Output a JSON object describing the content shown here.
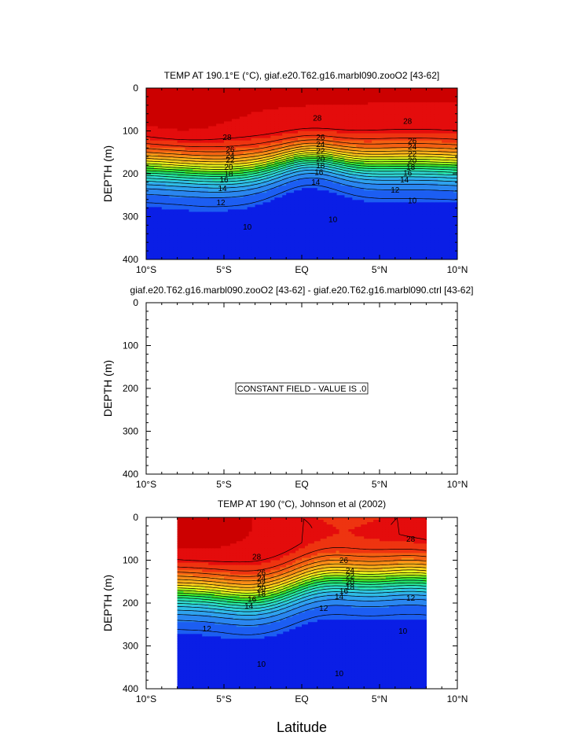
{
  "chart_data": [
    {
      "type": "contour",
      "title": "TEMP AT 190.1°E (°C), giaf.e20.T62.g16.marbl090.zooO2 [43-62]",
      "xlabel": "",
      "ylabel": "DEPTH (m)",
      "xticks": [
        "10°S",
        "5°S",
        "EQ",
        "5°N",
        "10°N"
      ],
      "yticks": [
        "0",
        "100",
        "200",
        "300",
        "400"
      ],
      "xlim": [
        -10,
        10
      ],
      "ylim": [
        0,
        400
      ],
      "colors": [
        "#0a1ee6",
        "#1c5ef2",
        "#2a86f0",
        "#2fa2ee",
        "#2fbde6",
        "#2fd6d0",
        "#29e6a8",
        "#22e46a",
        "#3ee628",
        "#9df01c",
        "#e8f41c",
        "#fbd41a",
        "#fbb01a",
        "#f98a16",
        "#f46012",
        "#ee3410",
        "#e40c0c",
        "#cc0000"
      ],
      "contour_labels": [
        {
          "text": "28",
          "x": -4.8,
          "y": 115
        },
        {
          "text": "28",
          "x": 1.0,
          "y": 70
        },
        {
          "text": "28",
          "x": 6.8,
          "y": 77
        },
        {
          "text": "26",
          "x": -4.6,
          "y": 143
        },
        {
          "text": "26",
          "x": 1.2,
          "y": 115
        },
        {
          "text": "26",
          "x": 7.1,
          "y": 123
        },
        {
          "text": "24",
          "x": -4.6,
          "y": 157
        },
        {
          "text": "24",
          "x": 1.2,
          "y": 131
        },
        {
          "text": "24",
          "x": 7.1,
          "y": 137
        },
        {
          "text": "22",
          "x": -4.6,
          "y": 168
        },
        {
          "text": "22",
          "x": 1.2,
          "y": 147
        },
        {
          "text": "22",
          "x": 7.1,
          "y": 153
        },
        {
          "text": "20",
          "x": -4.7,
          "y": 184
        },
        {
          "text": "20",
          "x": 1.2,
          "y": 165
        },
        {
          "text": "20",
          "x": 7.1,
          "y": 169
        },
        {
          "text": "18",
          "x": -4.7,
          "y": 200
        },
        {
          "text": "18",
          "x": 1.2,
          "y": 181
        },
        {
          "text": "18",
          "x": 7.0,
          "y": 184
        },
        {
          "text": "16",
          "x": -5.0,
          "y": 214
        },
        {
          "text": "16",
          "x": 1.1,
          "y": 196
        },
        {
          "text": "16",
          "x": 6.8,
          "y": 198
        },
        {
          "text": "14",
          "x": -5.1,
          "y": 234
        },
        {
          "text": "14",
          "x": 0.9,
          "y": 219
        },
        {
          "text": "14",
          "x": 6.6,
          "y": 214
        },
        {
          "text": "12",
          "x": -5.2,
          "y": 267
        },
        {
          "text": "12",
          "x": 6.0,
          "y": 238
        },
        {
          "text": "10",
          "x": -3.5,
          "y": 324
        },
        {
          "text": "10",
          "x": 2.0,
          "y": 306
        },
        {
          "text": "10",
          "x": 7.1,
          "y": 262
        }
      ]
    },
    {
      "type": "contour",
      "title": "giaf.e20.T62.g16.marbl090.zooO2 [43-62] - giaf.e20.T62.g16.marbl090.ctrl [43-62]",
      "xlabel": "",
      "ylabel": "DEPTH (m)",
      "xticks": [
        "10°S",
        "5°S",
        "EQ",
        "5°N",
        "10°N"
      ],
      "yticks": [
        "0",
        "100",
        "200",
        "300",
        "400"
      ],
      "xlim": [
        -10,
        10
      ],
      "ylim": [
        0,
        400
      ],
      "annotation": "CONSTANT FIELD - VALUE IS .0"
    },
    {
      "type": "contour",
      "title": "TEMP AT 190 (°C), Johnson et al (2002)",
      "xlabel": "Latitude",
      "ylabel": "DEPTH (m)",
      "xticks": [
        "10°S",
        "5°S",
        "EQ",
        "5°N",
        "10°N"
      ],
      "yticks": [
        "0",
        "100",
        "200",
        "300",
        "400"
      ],
      "xlim": [
        -10,
        10
      ],
      "ylim": [
        0,
        400
      ],
      "data_xrange": [
        -8,
        8
      ],
      "contour_labels": [
        {
          "text": "28",
          "x": 7.0,
          "y": 50
        },
        {
          "text": "28",
          "x": -2.9,
          "y": 92
        },
        {
          "text": "26",
          "x": -2.6,
          "y": 128
        },
        {
          "text": "26",
          "x": 2.7,
          "y": 100
        },
        {
          "text": "24",
          "x": -2.6,
          "y": 142
        },
        {
          "text": "24",
          "x": 3.1,
          "y": 124
        },
        {
          "text": "22",
          "x": -2.6,
          "y": 154
        },
        {
          "text": "22",
          "x": 3.1,
          "y": 137
        },
        {
          "text": "20",
          "x": -2.6,
          "y": 166
        },
        {
          "text": "20",
          "x": 3.1,
          "y": 150
        },
        {
          "text": "18",
          "x": -2.6,
          "y": 178
        },
        {
          "text": "18",
          "x": 3.1,
          "y": 162
        },
        {
          "text": "16",
          "x": -3.2,
          "y": 191
        },
        {
          "text": "16",
          "x": 2.7,
          "y": 172
        },
        {
          "text": "14",
          "x": -3.4,
          "y": 206
        },
        {
          "text": "14",
          "x": 2.4,
          "y": 184
        },
        {
          "text": "12",
          "x": -6.1,
          "y": 260
        },
        {
          "text": "12",
          "x": 1.4,
          "y": 212
        },
        {
          "text": "12",
          "x": 7.0,
          "y": 188
        },
        {
          "text": "10",
          "x": -2.6,
          "y": 342
        },
        {
          "text": "10",
          "x": 2.4,
          "y": 364
        },
        {
          "text": "10",
          "x": 6.5,
          "y": 265
        }
      ]
    }
  ]
}
